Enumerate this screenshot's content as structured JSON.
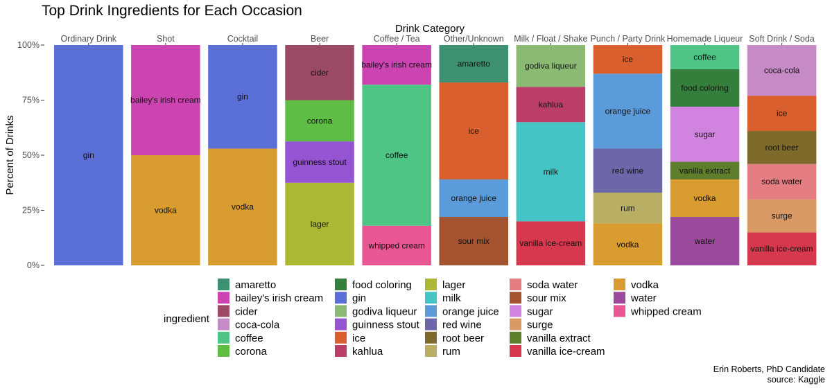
{
  "chart_data": {
    "type": "bar",
    "stacked": true,
    "title": "Top Drink Ingredients for Each Occasion",
    "top_axis_title": "Drink Category",
    "ylabel": "Percent of Drinks",
    "ylim": [
      0,
      1
    ],
    "y_ticks": [
      {
        "value": 0,
        "label": "0%"
      },
      {
        "value": 0.25,
        "label": "25%"
      },
      {
        "value": 0.5,
        "label": "50%"
      },
      {
        "value": 0.75,
        "label": "75%"
      },
      {
        "value": 1,
        "label": "100%"
      }
    ],
    "grid": false,
    "legend_title": "ingredient",
    "legend_position": "bottom",
    "caption": [
      "Erin Roberts, PhD Candidate",
      "source: Kaggle"
    ],
    "colors": {
      "amaretto": "#3d9170",
      "bailey's irish cream": "#cc44b2",
      "cider": "#9b4a65",
      "coca-cola": "#c68ac6",
      "coffee": "#4ec584",
      "corona": "#5fbd45",
      "food coloring": "#357f3d",
      "gin": "#5b6fd9",
      "godiva liqueur": "#8bba72",
      "guinness stout": "#9554d1",
      "ice": "#d95f2e",
      "kahlua": "#ba3e68",
      "lager": "#abb833",
      "milk": "#44c4c4",
      "orange juice": "#5c9bda",
      "red wine": "#6d66a8",
      "root beer": "#7d6a2a",
      "rum": "#b8af64",
      "soda water": "#e47e82",
      "sour mix": "#a3532f",
      "sugar": "#d184df",
      "surge": "#d89964",
      "vanilla extract": "#5e7e2c",
      "vanilla ice-cream": "#d6384d",
      "vodka": "#d89c31",
      "water": "#9c4a9e",
      "whipped cream": "#e95694"
    },
    "categories": [
      "Ordinary Drink",
      "Shot",
      "Cocktail",
      "Beer",
      "Coffee / Tea",
      "Other/Unknown",
      "Milk / Float / Shake",
      "Punch / Party Drink",
      "Homemade Liqueur",
      "Soft Drink / Soda"
    ],
    "stacks": [
      {
        "category": "Ordinary Drink",
        "segments": [
          {
            "ingredient": "gin",
            "share": 1.0
          }
        ]
      },
      {
        "category": "Shot",
        "segments": [
          {
            "ingredient": "vodka",
            "share": 0.5
          },
          {
            "ingredient": "bailey's irish cream",
            "share": 0.5
          }
        ]
      },
      {
        "category": "Cocktail",
        "segments": [
          {
            "ingredient": "vodka",
            "share": 0.53
          },
          {
            "ingredient": "gin",
            "share": 0.47
          }
        ]
      },
      {
        "category": "Beer",
        "segments": [
          {
            "ingredient": "lager",
            "share": 0.375
          },
          {
            "ingredient": "guinness stout",
            "share": 0.1875
          },
          {
            "ingredient": "corona",
            "share": 0.1875
          },
          {
            "ingredient": "cider",
            "share": 0.25
          }
        ]
      },
      {
        "category": "Coffee / Tea",
        "segments": [
          {
            "ingredient": "whipped cream",
            "share": 0.18
          },
          {
            "ingredient": "coffee",
            "share": 0.64
          },
          {
            "ingredient": "bailey's irish cream",
            "share": 0.18
          }
        ]
      },
      {
        "category": "Other/Unknown",
        "segments": [
          {
            "ingredient": "sour mix",
            "share": 0.22
          },
          {
            "ingredient": "orange juice",
            "share": 0.17
          },
          {
            "ingredient": "ice",
            "share": 0.44
          },
          {
            "ingredient": "amaretto",
            "share": 0.17
          }
        ]
      },
      {
        "category": "Milk / Float / Shake",
        "segments": [
          {
            "ingredient": "vanilla ice-cream",
            "share": 0.2
          },
          {
            "ingredient": "milk",
            "share": 0.45
          },
          {
            "ingredient": "kahlua",
            "share": 0.16
          },
          {
            "ingredient": "godiva liqueur",
            "share": 0.19
          }
        ]
      },
      {
        "category": "Punch / Party Drink",
        "segments": [
          {
            "ingredient": "vodka",
            "share": 0.19
          },
          {
            "ingredient": "rum",
            "share": 0.14
          },
          {
            "ingredient": "red wine",
            "share": 0.2
          },
          {
            "ingredient": "orange juice",
            "share": 0.34
          },
          {
            "ingredient": "ice",
            "share": 0.13
          }
        ]
      },
      {
        "category": "Homemade Liqueur",
        "segments": [
          {
            "ingredient": "water",
            "share": 0.22
          },
          {
            "ingredient": "vodka",
            "share": 0.17
          },
          {
            "ingredient": "vanilla extract",
            "share": 0.08
          },
          {
            "ingredient": "sugar",
            "share": 0.25
          },
          {
            "ingredient": "food coloring",
            "share": 0.17
          },
          {
            "ingredient": "coffee",
            "share": 0.11
          }
        ]
      },
      {
        "category": "Soft Drink / Soda",
        "segments": [
          {
            "ingredient": "vanilla ice-cream",
            "share": 0.15
          },
          {
            "ingredient": "surge",
            "share": 0.15
          },
          {
            "ingredient": "soda water",
            "share": 0.16
          },
          {
            "ingredient": "root beer",
            "share": 0.15
          },
          {
            "ingredient": "ice",
            "share": 0.16
          },
          {
            "ingredient": "coca-cola",
            "share": 0.23
          }
        ]
      }
    ],
    "legend_columns": [
      [
        "amaretto",
        "bailey's irish cream",
        "cider",
        "coca-cola",
        "coffee",
        "corona"
      ],
      [
        "food coloring",
        "gin",
        "godiva liqueur",
        "guinness stout",
        "ice",
        "kahlua"
      ],
      [
        "lager",
        "milk",
        "orange juice",
        "red wine",
        "root beer",
        "rum"
      ],
      [
        "soda water",
        "sour mix",
        "sugar",
        "surge",
        "vanilla extract",
        "vanilla ice-cream"
      ],
      [
        "vodka",
        "water",
        "whipped cream"
      ]
    ]
  }
}
